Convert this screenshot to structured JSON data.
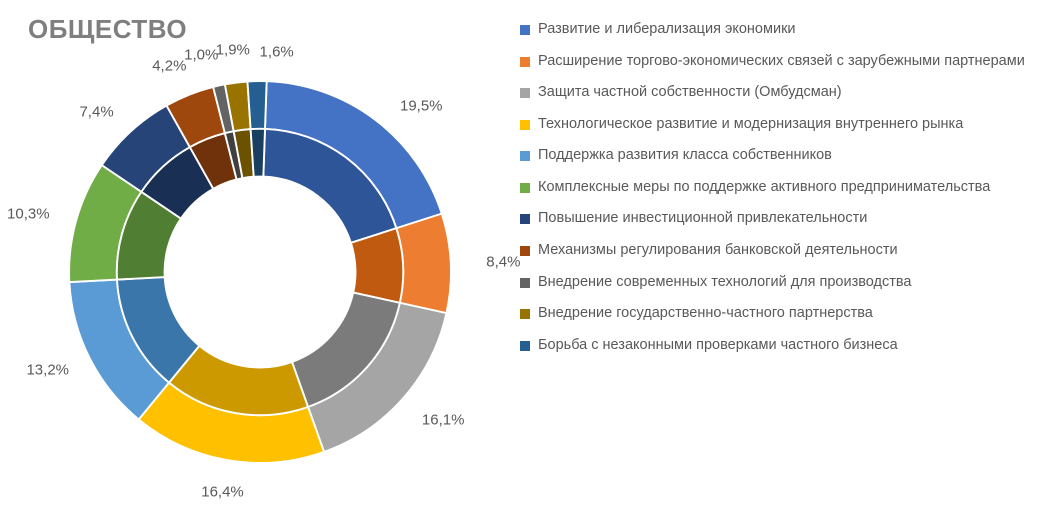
{
  "title": "ОБЩЕСТВО",
  "chart": {
    "type": "donut",
    "background_color": "#ffffff",
    "title_fontsize": 26,
    "title_color": "#7f7f7f",
    "label_fontsize": 15,
    "label_color": "#595959",
    "legend_fontsize": 14.5,
    "legend_color": "#595959",
    "outer_radius": 200,
    "inner_radius": 100,
    "separator_color": "#ffffff",
    "separator_width": 2,
    "slices": [
      {
        "label": "Развитие и либерализация экономики",
        "value": 19.5,
        "color_outer": "#4472c4",
        "color_inner": "#2e5597",
        "pct_text": "19,5%"
      },
      {
        "label": "Расширение торгово-экономических связей с зарубежными партнерами",
        "value": 8.4,
        "color_outer": "#ed7d31",
        "color_inner": "#c15a11",
        "pct_text": "8,4%"
      },
      {
        "label": "Защита частной собственности (Омбудсман)",
        "value": 16.1,
        "color_outer": "#a5a5a5",
        "color_inner": "#7b7b7b",
        "pct_text": "16,1%"
      },
      {
        "label": "Технологическое развитие и модернизация внутреннего рынка",
        "value": 16.4,
        "color_outer": "#ffc000",
        "color_inner": "#cc9a00",
        "pct_text": "16,4%"
      },
      {
        "label": "Поддержка развития класса собственников",
        "value": 13.2,
        "color_outer": "#5b9bd5",
        "color_inner": "#3b76ab",
        "pct_text": "13,2%"
      },
      {
        "label": "Комплексные меры по поддержке активного предпринимательства",
        "value": 10.3,
        "color_outer": "#70ad47",
        "color_inner": "#507e33",
        "pct_text": "10,3%"
      },
      {
        "label": "Повышение инвестиционной привлекательности",
        "value": 7.4,
        "color_outer": "#264478",
        "color_inner": "#1a2f54",
        "pct_text": "7,4%"
      },
      {
        "label": "Механизмы регулирования банковской деятельности",
        "value": 4.2,
        "color_outer": "#9e480e",
        "color_inner": "#6f320a",
        "pct_text": "4,2%"
      },
      {
        "label": "Внедрение современных технологий для производства",
        "value": 1.0,
        "color_outer": "#636363",
        "color_inner": "#404040",
        "pct_text": "1,0%"
      },
      {
        "label": "Внедрение государственно-частного партнерства",
        "value": 1.9,
        "color_outer": "#997300",
        "color_inner": "#6b5100",
        "pct_text": "1,9%"
      },
      {
        "label": "Борьба с незаконными проверками частного бизнеса",
        "value": 1.6,
        "color_outer": "#255e91",
        "color_inner": "#193f61",
        "pct_text": "1,6%"
      }
    ],
    "start_angle_deg": -88
  }
}
